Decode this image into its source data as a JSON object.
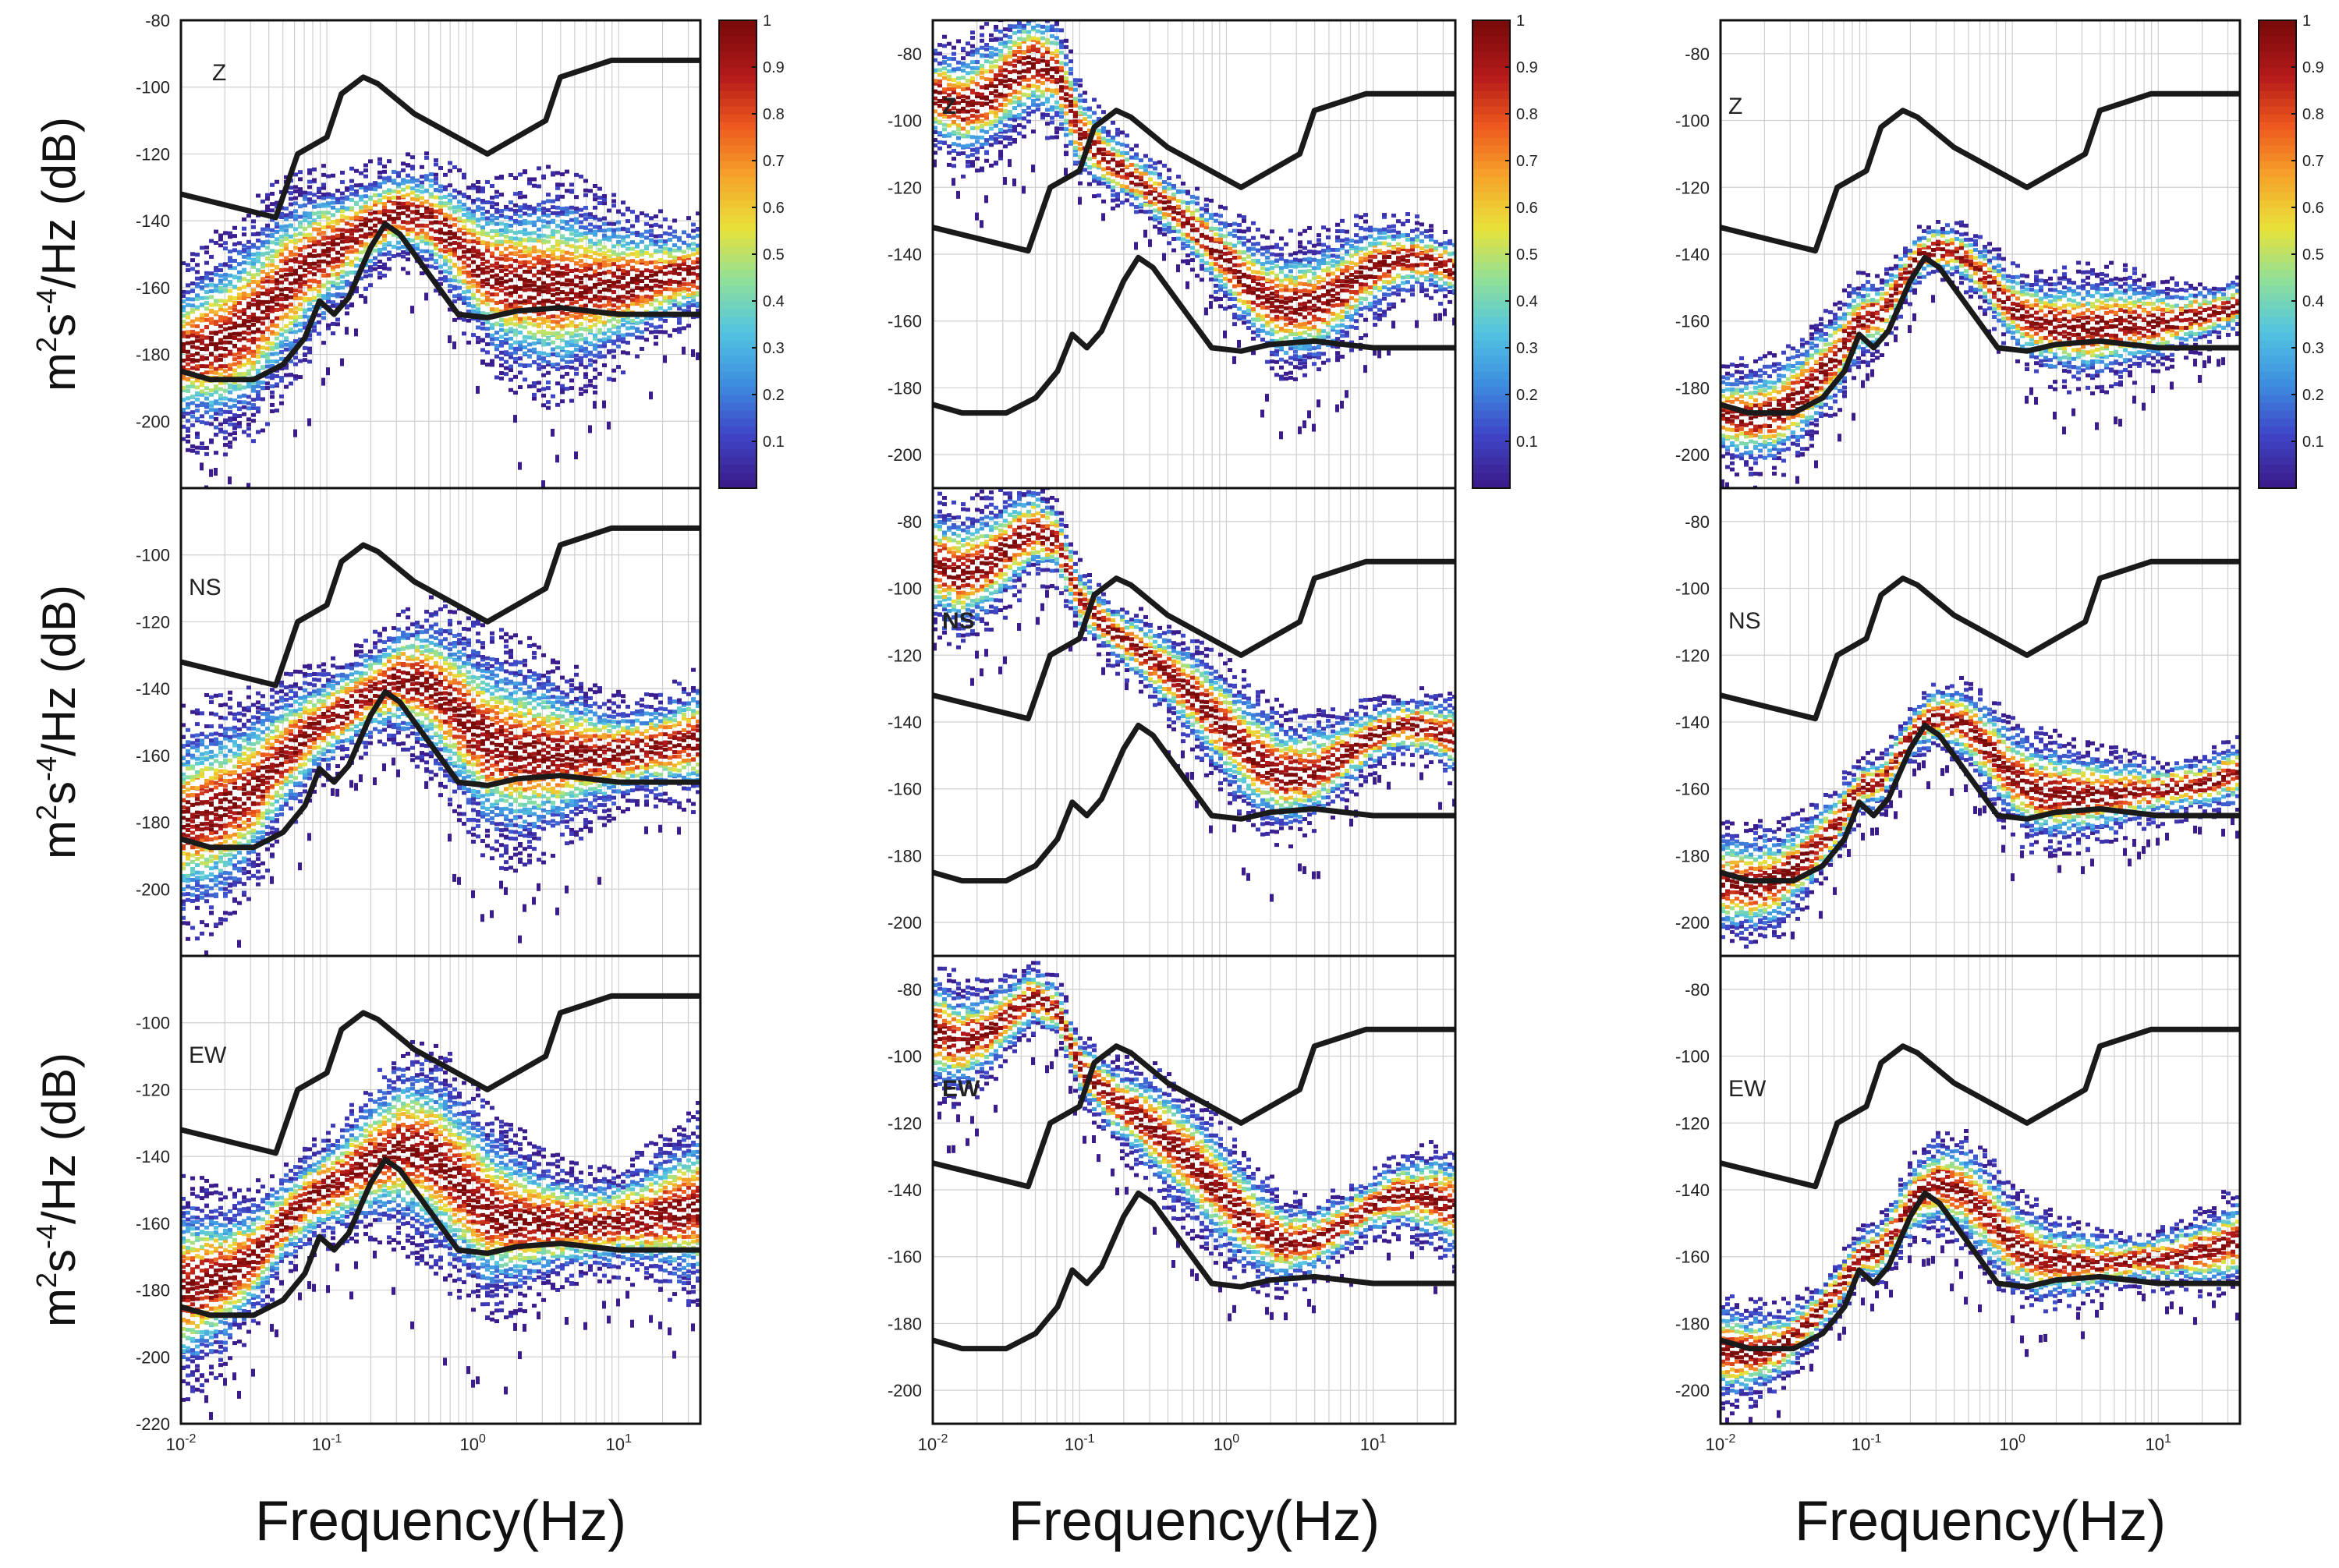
{
  "figure": {
    "ylabel": "m²s⁻⁴/Hz (dB)",
    "ylabel_base": "m",
    "ylabel_sup1": "2",
    "ylabel_mid": "s",
    "ylabel_sup2": "-4",
    "ylabel_tail": "/Hz (dB)",
    "xlabel": "Frequency(Hz)",
    "colors": {
      "nlnm_nhnm": "#1a1a1a",
      "grid": "#cfcfcf",
      "frame": "#111111"
    }
  },
  "chart_data": [
    {
      "type": "heatmap",
      "col": 0,
      "row": 0,
      "component": "Z",
      "y_ticks": [
        -80,
        -100,
        -120,
        -140,
        -160,
        -180,
        -200
      ],
      "ylim": [
        -220,
        -80
      ],
      "mode": "A"
    },
    {
      "type": "heatmap",
      "col": 0,
      "row": 1,
      "component": "NS",
      "y_ticks": [
        -100,
        -120,
        -140,
        -160,
        -180,
        -200
      ],
      "ylim": [
        -220,
        -80
      ],
      "mode": "A"
    },
    {
      "type": "heatmap",
      "col": 0,
      "row": 2,
      "component": "EW",
      "y_ticks": [
        -100,
        -120,
        -140,
        -160,
        -180,
        -200,
        -220
      ],
      "ylim": [
        -220,
        -80
      ],
      "mode": "A"
    },
    {
      "type": "heatmap",
      "col": 1,
      "row": 0,
      "component": "Z",
      "y_ticks": [
        -80,
        -100,
        -120,
        -140,
        -160,
        -180,
        -200
      ],
      "ylim": [
        -210,
        -70
      ],
      "mode": "B"
    },
    {
      "type": "heatmap",
      "col": 1,
      "row": 1,
      "component": "NS",
      "y_ticks": [
        -80,
        -100,
        -120,
        -140,
        -160,
        -180,
        -200
      ],
      "ylim": [
        -210,
        -70
      ],
      "mode": "B"
    },
    {
      "type": "heatmap",
      "col": 1,
      "row": 2,
      "component": "EW",
      "y_ticks": [
        -80,
        -100,
        -120,
        -140,
        -160,
        -180,
        -200
      ],
      "ylim": [
        -210,
        -70
      ],
      "mode": "B"
    },
    {
      "type": "heatmap",
      "col": 2,
      "row": 0,
      "component": "Z",
      "y_ticks": [
        -80,
        -100,
        -120,
        -140,
        -160,
        -180,
        -200
      ],
      "ylim": [
        -210,
        -70
      ],
      "mode": "C"
    },
    {
      "type": "heatmap",
      "col": 2,
      "row": 1,
      "component": "NS",
      "y_ticks": [
        -80,
        -100,
        -120,
        -140,
        -160,
        -180,
        -200
      ],
      "ylim": [
        -210,
        -70
      ],
      "mode": "C"
    },
    {
      "type": "heatmap",
      "col": 2,
      "row": 2,
      "component": "EW",
      "y_ticks": [
        -80,
        -100,
        -120,
        -140,
        -160,
        -180,
        -200
      ],
      "ylim": [
        -210,
        -70
      ],
      "mode": "C"
    }
  ],
  "x_axis": {
    "xlim_log10": [
      -2,
      1.56
    ],
    "tick_labels": [
      {
        "base": "10",
        "exp": "-2",
        "log": -2
      },
      {
        "base": "10",
        "exp": "-1",
        "log": -1
      },
      {
        "base": "10",
        "exp": "0",
        "log": 0
      },
      {
        "base": "10",
        "exp": "1",
        "log": 1
      }
    ]
  },
  "colorbar": {
    "range": [
      0,
      1
    ],
    "tick_labels": [
      "0.1",
      "0.2",
      "0.3",
      "0.4",
      "0.5",
      "0.6",
      "0.7",
      "0.8",
      "0.9",
      "1"
    ],
    "stops": [
      "#3b1c8c",
      "#3f47c8",
      "#3e8fe0",
      "#53c5e0",
      "#8fe09a",
      "#e8e23a",
      "#f6a62a",
      "#ee5a1e",
      "#b3191a",
      "#7a0b0b"
    ]
  },
  "nlnm": [
    [
      -2.0,
      -185
    ],
    [
      -1.8,
      -187.5
    ],
    [
      -1.5,
      -187.5
    ],
    [
      -1.3,
      -183
    ],
    [
      -1.15,
      -175
    ],
    [
      -1.05,
      -164
    ],
    [
      -0.95,
      -168
    ],
    [
      -0.85,
      -163
    ],
    [
      -0.7,
      -148
    ],
    [
      -0.6,
      -141
    ],
    [
      -0.5,
      -144
    ],
    [
      -0.3,
      -156
    ],
    [
      -0.1,
      -168
    ],
    [
      0.1,
      -169
    ],
    [
      0.3,
      -167
    ],
    [
      0.6,
      -166
    ],
    [
      1.0,
      -168
    ],
    [
      1.56,
      -168
    ]
  ],
  "nhnm": [
    [
      -2.0,
      -132
    ],
    [
      -1.35,
      -139
    ],
    [
      -1.2,
      -120
    ],
    [
      -1.0,
      -115
    ],
    [
      -0.9,
      -102
    ],
    [
      -0.75,
      -97
    ],
    [
      -0.65,
      -99
    ],
    [
      -0.4,
      -108
    ],
    [
      0.1,
      -120
    ],
    [
      0.5,
      -110
    ],
    [
      0.6,
      -97
    ],
    [
      0.95,
      -92
    ],
    [
      1.56,
      -92
    ]
  ],
  "modal_curves": {
    "A": [
      [
        -2.0,
        -180
      ],
      [
        -1.7,
        -176
      ],
      [
        -1.5,
        -170
      ],
      [
        -1.3,
        -160
      ],
      [
        -1.1,
        -152
      ],
      [
        -0.9,
        -147
      ],
      [
        -0.7,
        -141
      ],
      [
        -0.5,
        -137
      ],
      [
        -0.3,
        -139
      ],
      [
        -0.1,
        -147
      ],
      [
        0.1,
        -156
      ],
      [
        0.3,
        -159
      ],
      [
        0.6,
        -160
      ],
      [
        0.9,
        -160
      ],
      [
        1.2,
        -158
      ],
      [
        1.56,
        -155
      ]
    ],
    "B": [
      [
        -2.0,
        -92
      ],
      [
        -1.8,
        -96
      ],
      [
        -1.6,
        -92
      ],
      [
        -1.45,
        -86
      ],
      [
        -1.3,
        -82
      ],
      [
        -1.15,
        -86
      ],
      [
        -1.0,
        -103
      ],
      [
        -0.8,
        -112
      ],
      [
        -0.6,
        -118
      ],
      [
        -0.4,
        -125
      ],
      [
        -0.2,
        -133
      ],
      [
        0.0,
        -142
      ],
      [
        0.2,
        -151
      ],
      [
        0.4,
        -156
      ],
      [
        0.6,
        -155
      ],
      [
        0.8,
        -150
      ],
      [
        1.0,
        -144
      ],
      [
        1.2,
        -141
      ],
      [
        1.4,
        -142
      ],
      [
        1.56,
        -145
      ]
    ],
    "C": [
      [
        -2.0,
        -188
      ],
      [
        -1.8,
        -189
      ],
      [
        -1.6,
        -187
      ],
      [
        -1.4,
        -180
      ],
      [
        -1.2,
        -170
      ],
      [
        -1.05,
        -160
      ],
      [
        -0.9,
        -158
      ],
      [
        -0.8,
        -151
      ],
      [
        -0.65,
        -141
      ],
      [
        -0.5,
        -138
      ],
      [
        -0.35,
        -140
      ],
      [
        -0.2,
        -146
      ],
      [
        0.0,
        -156
      ],
      [
        0.2,
        -161
      ],
      [
        0.5,
        -162
      ],
      [
        0.8,
        -161
      ],
      [
        1.1,
        -160
      ],
      [
        1.35,
        -158
      ],
      [
        1.56,
        -155
      ]
    ]
  },
  "modal_spread": {
    "A": 22,
    "B": 14,
    "C": 12
  }
}
